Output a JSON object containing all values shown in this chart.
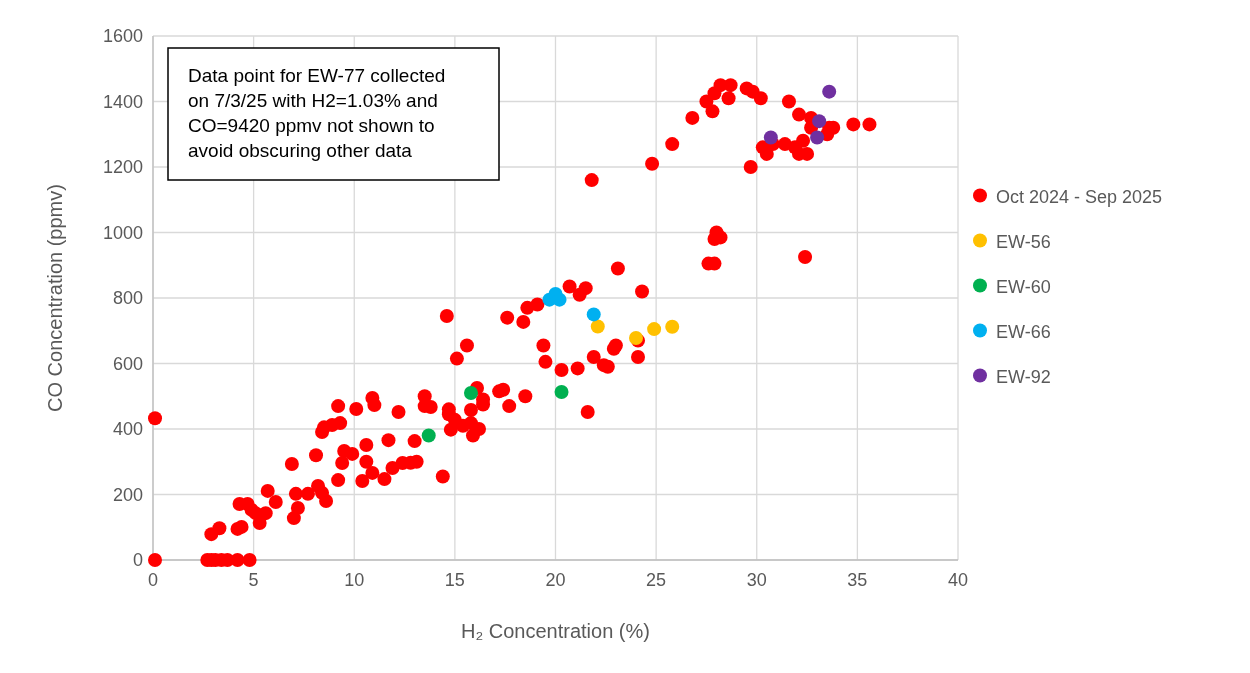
{
  "chart_data": {
    "type": "scatter",
    "xlabel": "H₂ Concentration (%)",
    "ylabel": "CO Concentration (ppmv)",
    "xlim": [
      0,
      40
    ],
    "xticks": [
      0,
      5,
      10,
      15,
      20,
      25,
      30,
      35,
      40
    ],
    "ylim": [
      0,
      1600
    ],
    "yticks": [
      0,
      200,
      400,
      600,
      800,
      1000,
      1200,
      1400,
      1600
    ],
    "grid": true,
    "legend": "right",
    "marker": "circle",
    "annotations": [
      "Data point for EW-77 collected on 7/3/25 with H2=1.03% and CO=9420 ppmv not shown to avoid obscuring other data"
    ],
    "series": [
      {
        "name": "Oct 2024 - Sep 2025",
        "color": "#ff0000",
        "x": [
          0.1,
          0.1,
          2.7,
          2.9,
          3.1,
          3.4,
          3.7,
          4.2,
          4.8,
          2.9,
          3.3,
          4.2,
          4.4,
          4.3,
          4.7,
          4.9,
          5.1,
          5.3,
          5.6,
          5.7,
          6.1,
          7.0,
          7.2,
          7.1,
          6.9,
          7.7,
          8.1,
          8.2,
          8.4,
          8.6,
          8.4,
          8.5,
          8.9,
          9.3,
          9.2,
          9.2,
          9.4,
          9.5,
          9.9,
          10.1,
          10.4,
          10.6,
          10.6,
          10.9,
          10.9,
          11.0,
          11.5,
          11.7,
          11.9,
          12.2,
          12.4,
          12.8,
          13.1,
          13.0,
          13.5,
          13.5,
          13.8,
          14.4,
          14.6,
          14.7,
          14.7,
          14.8,
          15.0,
          15.1,
          15.4,
          15.6,
          15.8,
          15.8,
          15.9,
          16.2,
          16.1,
          16.4,
          16.4,
          17.2,
          17.4,
          17.6,
          17.7,
          18.4,
          18.5,
          18.6,
          19.1,
          19.4,
          19.5,
          20.3,
          20.7,
          21.1,
          21.2,
          21.5,
          21.6,
          21.8,
          21.9,
          22.4,
          22.6,
          22.9,
          23.0,
          23.1,
          24.1,
          24.1,
          24.3,
          24.8,
          25.8,
          26.8,
          27.5,
          27.8,
          27.9,
          28.2,
          28.7,
          28.6,
          29.5,
          29.8,
          30.2,
          29.7,
          30.3,
          30.5,
          30.8,
          31.4,
          31.6,
          32.1,
          31.9,
          32.1,
          32.5,
          32.3,
          32.7,
          32.7,
          33.5,
          33.6,
          33.8,
          34.8,
          35.6,
          28.0,
          27.9,
          28.2,
          27.6,
          27.9,
          32.4
        ],
        "values": [
          433,
          0,
          0,
          0,
          0,
          0,
          0,
          0,
          0,
          79,
          97,
          95,
          101,
          171,
          171,
          153,
          143,
          113,
          143,
          211,
          177,
          128,
          159,
          202,
          293,
          202,
          320,
          226,
          205,
          180,
          391,
          405,
          412,
          418,
          470,
          244,
          296,
          333,
          324,
          461,
          241,
          300,
          351,
          266,
          495,
          473,
          247,
          366,
          281,
          452,
          296,
          297,
          300,
          363,
          500,
          470,
          467,
          255,
          745,
          460,
          445,
          398,
          428,
          615,
          410,
          655,
          458,
          418,
          380,
          400,
          525,
          490,
          475,
          515,
          520,
          740,
          470,
          727,
          500,
          770,
          780,
          655,
          605,
          580,
          835,
          585,
          810,
          830,
          452,
          1160,
          620,
          595,
          590,
          645,
          655,
          890,
          670,
          620,
          820,
          1210,
          1270,
          1350,
          1400,
          1370,
          1425,
          1450,
          1450,
          1410,
          1440,
          1430,
          1410,
          1200,
          1260,
          1240,
          1270,
          1270,
          1400,
          1360,
          1260,
          1240,
          1240,
          1280,
          1350,
          1320,
          1300,
          1320,
          1320,
          1330,
          1330,
          1000,
          980,
          985,
          905,
          905,
          925
        ]
      },
      {
        "name": "EW-56",
        "color": "#ffc000",
        "x": [
          22.1,
          24.0,
          24.9,
          25.8
        ],
        "values": [
          713,
          678,
          705,
          712
        ]
      },
      {
        "name": "EW-60",
        "color": "#00b050",
        "x": [
          13.7,
          15.8,
          20.3
        ],
        "values": [
          380,
          510,
          513
        ]
      },
      {
        "name": "EW-66",
        "color": "#00b0f0",
        "x": [
          19.7,
          20.0,
          20.2,
          21.9
        ],
        "values": [
          795,
          812,
          795,
          750
        ]
      },
      {
        "name": "EW-92",
        "color": "#7030a0",
        "x": [
          30.7,
          33.0,
          33.1,
          33.6
        ],
        "values": [
          1290,
          1290,
          1340,
          1430
        ]
      }
    ]
  }
}
